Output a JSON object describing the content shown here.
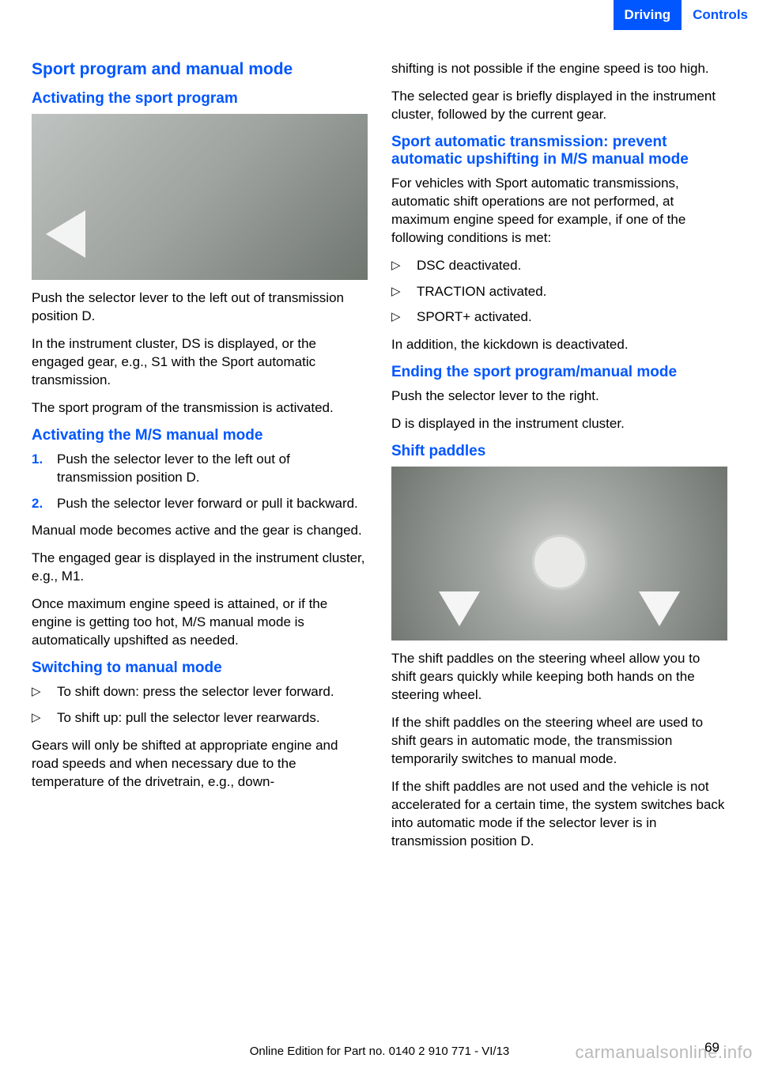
{
  "header": {
    "tab1": "Driving",
    "tab2": "Controls"
  },
  "left": {
    "h1": "Sport program and manual mode",
    "h2a": "Activating the sport program",
    "p1": "Push the selector lever to the left out of trans­mission position D.",
    "p2": "In the instrument cluster, DS is displayed, or the engaged gear, e.g., S1 with the Sport auto­matic transmission.",
    "p3": "The sport program of the transmission is acti­vated.",
    "h2b": "Activating the M/S manual mode",
    "ol": [
      "Push the selector lever to the left out of transmission position D.",
      "Push the selector lever forward or pull it backward."
    ],
    "p4": "Manual mode becomes active and the gear is changed.",
    "p5": "The engaged gear is displayed in the instru­ment cluster, e.g., M1.",
    "p6": "Once maximum engine speed is attained, or if the engine is getting too hot, M/S manual mode is automatically upshifted as needed.",
    "h2c": "Switching to manual mode",
    "ul1": [
      "To shift down: press the selector lever for­ward.",
      "To shift up: pull the selector lever rear­wards."
    ],
    "p7": "Gears will only be shifted at appropriate engine and road speeds and when necessary due to the temperature of the drivetrain, e.g., down-"
  },
  "right": {
    "p1": "shifting is not possible if the engine speed is too high.",
    "p2": "The selected gear is briefly displayed in the in­strument cluster, followed by the current gear.",
    "h2a": "Sport automatic transmission: prevent automatic upshifting in M/S manual mode",
    "p3": "For vehicles with Sport automatic transmis­sions, automatic shift operations are not per­formed, at maximum engine speed for exam­ple, if one of the following conditions is met:",
    "ul1": [
      "DSC deactivated.",
      "TRACTION activated.",
      "SPORT+ activated."
    ],
    "p4": "In addition, the kickdown is deactivated.",
    "h2b": "Ending the sport program/manual mode",
    "p5": "Push the selector lever to the right.",
    "p6": "D is displayed in the instrument cluster.",
    "h2c": "Shift paddles",
    "p7": "The shift paddles on the steering wheel allow you to shift gears quickly while keeping both hands on the steering wheel.",
    "p8": "If the shift paddles on the steering wheel are used to shift gears in automatic mode, the transmission temporarily switches to manual mode.",
    "p9": "If the shift paddles are not used and the vehicle is not accelerated for a certain time, the sys­tem switches back into automatic mode if the selector lever is in transmission position D."
  },
  "footer": {
    "page": "69",
    "line": "Online Edition for Part no. 0140 2 910 771 - VI/13"
  },
  "watermark": "carmanualsonline.info",
  "colors": {
    "accent": "#0056ff",
    "text": "#000000",
    "bg": "#ffffff"
  }
}
